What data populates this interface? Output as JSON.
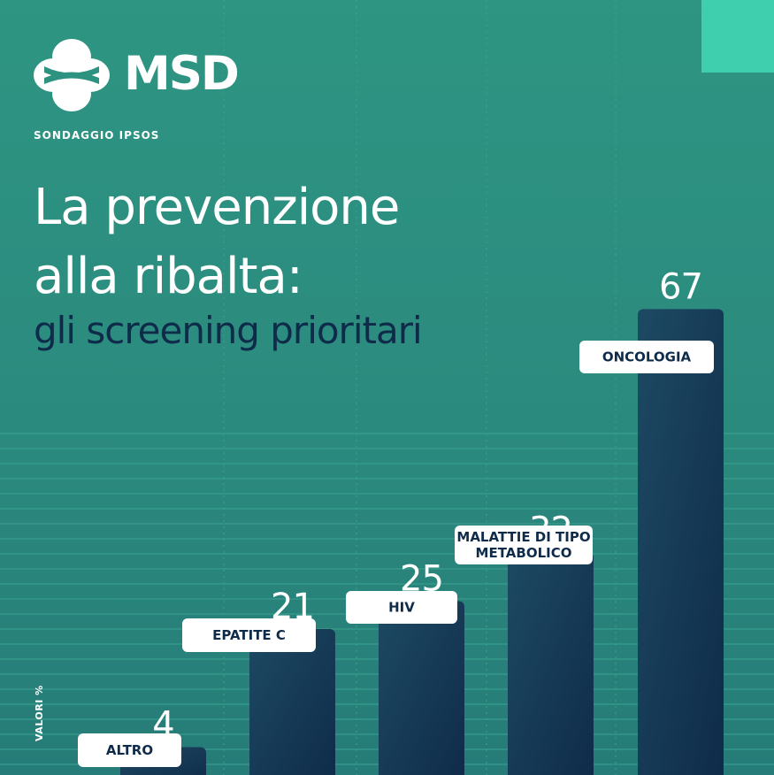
{
  "brand": {
    "name": "MSD",
    "survey_label": "SONDAGGIO IPSOS",
    "accent_color": "#40cfae",
    "background_color": "#2b8a7e",
    "bar_color": "#0f2b4a"
  },
  "headline": {
    "line1": "La prevenzione",
    "line2": "alla ribalta:",
    "line3": "gli screening prioritari"
  },
  "chart_data": {
    "type": "bar",
    "categories": [
      "ALTRO",
      "EPATITE C",
      "HIV",
      "MALATTIE DI TIPO METABOLICO",
      "ONCOLOGIA"
    ],
    "category_lines": [
      [
        "ALTRO"
      ],
      [
        "EPATITE C"
      ],
      [
        "HIV"
      ],
      [
        "MALATTIE DI TIPO",
        "METABOLICO"
      ],
      [
        "ONCOLOGIA"
      ]
    ],
    "values": [
      4,
      21,
      25,
      32,
      67
    ],
    "ylabel": "VALORI %",
    "ylim": [
      0,
      100
    ],
    "grid": "horizontal lines in lower area"
  }
}
